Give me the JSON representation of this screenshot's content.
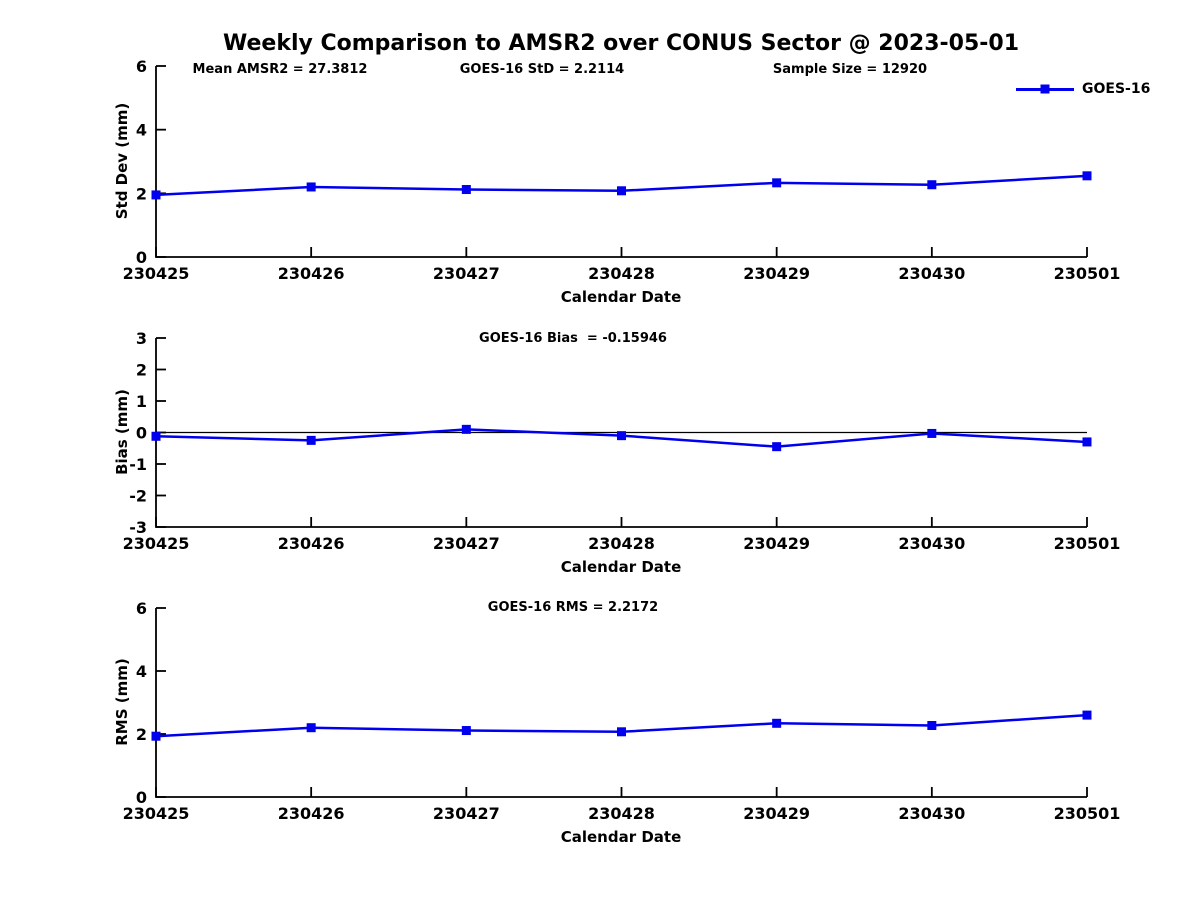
{
  "page": {
    "title": "Weekly Comparison to AMSR2 over CONUS Sector @ 2023-05-01"
  },
  "legend": {
    "label": "GOES-16"
  },
  "colors": {
    "line": "#0000ee",
    "axis": "#000000",
    "zero_line": "#000000"
  },
  "chart_data": [
    {
      "type": "line",
      "id": "std-dev",
      "annotations": [
        "Mean AMSR2 = 27.3812",
        "GOES-16 StD = 2.2114",
        "Sample Size = 12920"
      ],
      "ylabel": "Std Dev (mm)",
      "xlabel": "Calendar Date",
      "categories": [
        "230425",
        "230426",
        "230427",
        "230428",
        "230429",
        "230430",
        "230501"
      ],
      "series": [
        {
          "name": "GOES-16",
          "marker": "square",
          "values": [
            1.95,
            2.2,
            2.12,
            2.08,
            2.33,
            2.27,
            2.55
          ]
        }
      ],
      "ylim": [
        0,
        6
      ],
      "yticks": [
        0,
        2,
        4,
        6
      ],
      "zero_line": false,
      "grid": false,
      "legend_position": "outside-top-right"
    },
    {
      "type": "line",
      "id": "bias",
      "annotations": [
        "GOES-16 Bias  = -0.15946"
      ],
      "ylabel": "Bias (mm)",
      "xlabel": "Calendar Date",
      "categories": [
        "230425",
        "230426",
        "230427",
        "230428",
        "230429",
        "230430",
        "230501"
      ],
      "series": [
        {
          "name": "GOES-16",
          "marker": "square",
          "values": [
            -0.12,
            -0.25,
            0.1,
            -0.1,
            -0.45,
            -0.03,
            -0.3
          ]
        }
      ],
      "ylim": [
        -3,
        3
      ],
      "yticks": [
        -3,
        -2,
        -1,
        0,
        1,
        2,
        3
      ],
      "zero_line": true,
      "grid": false
    },
    {
      "type": "line",
      "id": "rms",
      "annotations": [
        "GOES-16 RMS = 2.2172"
      ],
      "ylabel": "RMS (mm)",
      "xlabel": "Calendar Date",
      "categories": [
        "230425",
        "230426",
        "230427",
        "230428",
        "230429",
        "230430",
        "230501"
      ],
      "series": [
        {
          "name": "GOES-16",
          "marker": "square",
          "values": [
            1.93,
            2.2,
            2.11,
            2.07,
            2.34,
            2.27,
            2.6
          ]
        }
      ],
      "ylim": [
        0,
        6
      ],
      "yticks": [
        0,
        2,
        4,
        6
      ],
      "zero_line": false,
      "grid": false
    }
  ]
}
